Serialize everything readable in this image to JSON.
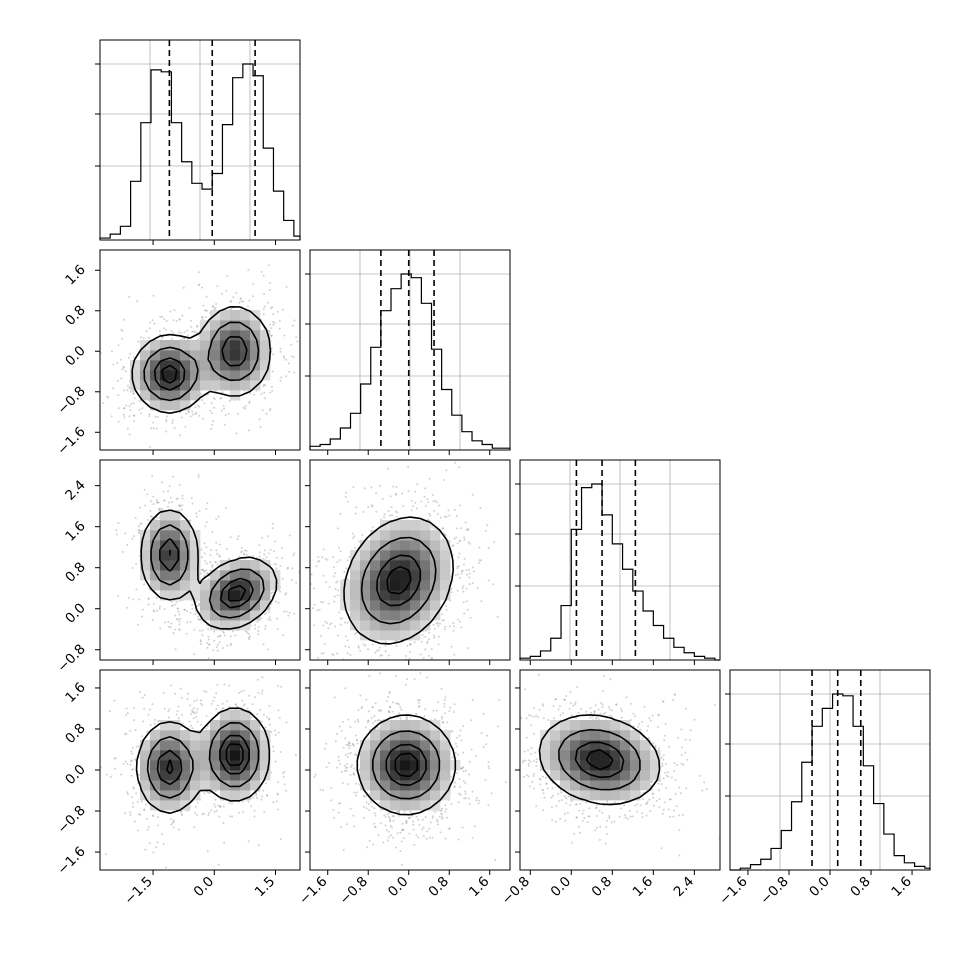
{
  "chart_data": {
    "type": "corner",
    "parameters": 4,
    "grid": true,
    "colors": {
      "line": "#000000",
      "grid": "#b0b0b0",
      "scatter": "#9a9a9a",
      "density": "#000000"
    },
    "ranges": [
      [
        -2.8,
        2.1
      ],
      [
        -1.95,
        2.0
      ],
      [
        -1.0,
        2.9
      ],
      [
        -1.95,
        1.95
      ]
    ],
    "ticks": [
      {
        "values": [
          -1.5,
          0.0,
          1.5
        ],
        "labels": [
          "−1.5",
          "0.0",
          "1.5"
        ]
      },
      {
        "values": [
          -1.6,
          -0.8,
          0.0,
          0.8,
          1.6
        ],
        "labels": [
          "−1.6",
          "−0.8",
          "0.0",
          "0.8",
          "1.6"
        ]
      },
      {
        "values": [
          -0.8,
          0.0,
          0.8,
          1.6,
          2.4
        ],
        "labels": [
          "−0.8",
          "0.0",
          "0.8",
          "1.6",
          "2.4"
        ]
      },
      {
        "values": [
          -1.6,
          -0.8,
          0.0,
          0.8,
          1.6
        ],
        "labels": [
          "−1.6",
          "−0.8",
          "0.0",
          "0.8",
          "1.6"
        ]
      }
    ],
    "quantiles": [
      [
        -1.1,
        -0.05,
        1.0
      ],
      [
        -0.55,
        0.0,
        0.5
      ],
      [
        0.1,
        0.6,
        1.25
      ],
      [
        -0.35,
        0.15,
        0.6
      ]
    ],
    "histograms": [
      {
        "edges": [
          -2.8,
          -2.55,
          -2.3,
          -2.05,
          -1.8,
          -1.55,
          -1.3,
          -1.05,
          -0.8,
          -0.55,
          -0.3,
          -0.05,
          0.2,
          0.45,
          0.7,
          0.95,
          1.2,
          1.45,
          1.7,
          1.95,
          2.1
        ],
        "counts": [
          0.01,
          0.03,
          0.07,
          0.3,
          0.6,
          0.87,
          0.86,
          0.6,
          0.4,
          0.29,
          0.26,
          0.34,
          0.59,
          0.83,
          0.9,
          0.84,
          0.47,
          0.25,
          0.1,
          0.02
        ]
      },
      {
        "edges": [
          -1.95,
          -1.75,
          -1.55,
          -1.35,
          -1.15,
          -0.95,
          -0.75,
          -0.55,
          -0.35,
          -0.15,
          0.05,
          0.25,
          0.45,
          0.65,
          0.85,
          1.05,
          1.25,
          1.45,
          1.65,
          1.85,
          2.0
        ],
        "counts": [
          0.02,
          0.03,
          0.06,
          0.12,
          0.2,
          0.36,
          0.56,
          0.76,
          0.88,
          0.96,
          0.94,
          0.8,
          0.55,
          0.33,
          0.19,
          0.1,
          0.05,
          0.03,
          0.01,
          0.01
        ]
      },
      {
        "edges": [
          -1.0,
          -0.8,
          -0.6,
          -0.4,
          -0.2,
          0.0,
          0.2,
          0.4,
          0.6,
          0.8,
          1.0,
          1.2,
          1.4,
          1.6,
          1.8,
          2.0,
          2.2,
          2.4,
          2.6,
          2.8,
          2.9
        ],
        "counts": [
          0.01,
          0.02,
          0.05,
          0.12,
          0.3,
          0.72,
          0.95,
          0.97,
          0.8,
          0.64,
          0.5,
          0.38,
          0.27,
          0.19,
          0.12,
          0.07,
          0.04,
          0.02,
          0.01,
          0.0
        ]
      },
      {
        "edges": [
          -1.95,
          -1.75,
          -1.55,
          -1.35,
          -1.15,
          -0.95,
          -0.75,
          -0.55,
          -0.35,
          -0.15,
          0.05,
          0.25,
          0.45,
          0.65,
          0.85,
          1.05,
          1.25,
          1.45,
          1.65,
          1.85,
          1.95
        ],
        "counts": [
          0.0,
          0.01,
          0.03,
          0.06,
          0.12,
          0.22,
          0.38,
          0.6,
          0.8,
          0.9,
          0.98,
          0.97,
          0.8,
          0.58,
          0.37,
          0.2,
          0.08,
          0.04,
          0.02,
          0.01
        ]
      }
    ],
    "blobs": {
      "1-0": [
        {
          "cx": -1.1,
          "cy": -0.45,
          "sx": 0.45,
          "sy": 0.38,
          "rot": 0,
          "w": 1.0
        },
        {
          "cx": 0.5,
          "cy": 0.0,
          "sx": 0.45,
          "sy": 0.45,
          "rot": 0,
          "w": 0.9
        }
      ],
      "2-0": [
        {
          "cx": -1.1,
          "cy": 1.05,
          "sx": 0.35,
          "sy": 0.45,
          "rot": 0,
          "w": 0.9
        },
        {
          "cx": 0.55,
          "cy": 0.3,
          "sx": 0.5,
          "sy": 0.32,
          "rot": 0.35,
          "w": 1.0
        }
      ],
      "2-1": [
        {
          "cx": -0.2,
          "cy": 0.55,
          "sx": 0.5,
          "sy": 0.65,
          "rot": -0.5,
          "w": 1.0
        }
      ],
      "3-0": [
        {
          "cx": -1.1,
          "cy": 0.05,
          "sx": 0.4,
          "sy": 0.45,
          "rot": 0,
          "w": 0.9
        },
        {
          "cx": 0.5,
          "cy": 0.3,
          "sx": 0.42,
          "sy": 0.45,
          "rot": 0,
          "w": 1.0
        }
      ],
      "3-1": [
        {
          "cx": -0.05,
          "cy": 0.1,
          "sx": 0.48,
          "sy": 0.48,
          "rot": 0,
          "w": 1.0
        }
      ],
      "3-2": [
        {
          "cx": 0.55,
          "cy": 0.2,
          "sx": 0.6,
          "sy": 0.42,
          "rot": -0.25,
          "w": 1.0
        }
      ]
    }
  }
}
